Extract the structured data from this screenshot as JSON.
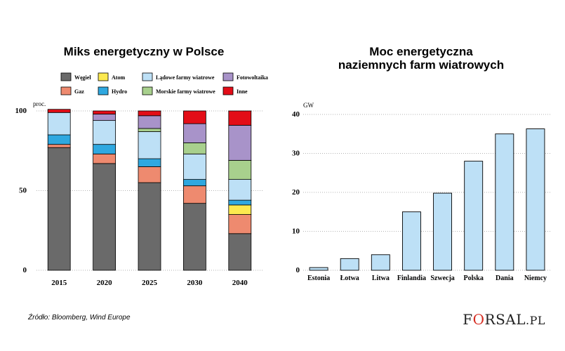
{
  "source_note": "Źródło: Bloomberg, Wind Europe",
  "brand": {
    "prefix": "F",
    "ring": "O",
    "suffix": "RSAL",
    "domain": ".PL"
  },
  "chart_data": [
    {
      "type": "bar",
      "stacked": true,
      "title": "Miks energetyczny w Polsce",
      "unit_label": "proc.",
      "ylim": [
        0,
        100
      ],
      "yticks": [
        "100",
        "50",
        "0"
      ],
      "ytick_values": [
        100,
        50,
        0
      ],
      "categories": [
        "2015",
        "2020",
        "2025",
        "2030",
        "2040"
      ],
      "legend_placement": "top",
      "series": [
        {
          "name": "Węgiel",
          "color": "#6a6a6a",
          "values": [
            77,
            67,
            55,
            42,
            23
          ]
        },
        {
          "name": "Gaz",
          "color": "#ee8a6f",
          "values": [
            2,
            6,
            10,
            11,
            12
          ]
        },
        {
          "name": "Atom",
          "color": "#fce94f",
          "values": [
            0,
            0,
            0,
            0,
            6
          ]
        },
        {
          "name": "Hydro",
          "color": "#2fa8e0",
          "values": [
            6,
            6,
            5,
            4,
            3
          ]
        },
        {
          "name": "Lądowe farmy wiatrowe",
          "color": "#bde0f6",
          "values": [
            14,
            15,
            17,
            16,
            13
          ]
        },
        {
          "name": "Morskie farmy wiatrowe",
          "color": "#a8d08d",
          "values": [
            0,
            0,
            2,
            7,
            12
          ]
        },
        {
          "name": "Fotowoltaika",
          "color": "#a893c9",
          "values": [
            0,
            4,
            8,
            12,
            22
          ]
        },
        {
          "name": "Inne",
          "color": "#e30d17",
          "values": [
            2,
            2,
            3,
            8,
            9
          ]
        }
      ]
    },
    {
      "type": "bar",
      "title": "Moc energetyczna naziemnych farm wiatrowych",
      "unit_label": "GW",
      "ylim": [
        0,
        40
      ],
      "yticks": [
        "40",
        "30",
        "20",
        "10",
        "0"
      ],
      "ytick_values": [
        40,
        30,
        20,
        10,
        0
      ],
      "categories": [
        "Estonia",
        "Łotwa",
        "Litwa",
        "Finlandia",
        "Szwecja",
        "Polska",
        "Dania",
        "Niemcy"
      ],
      "values": [
        0.7,
        3,
        4,
        15,
        19.8,
        28,
        35,
        36.3
      ],
      "bar_color": "#bde0f6",
      "grid": "horizontal dotted"
    }
  ]
}
